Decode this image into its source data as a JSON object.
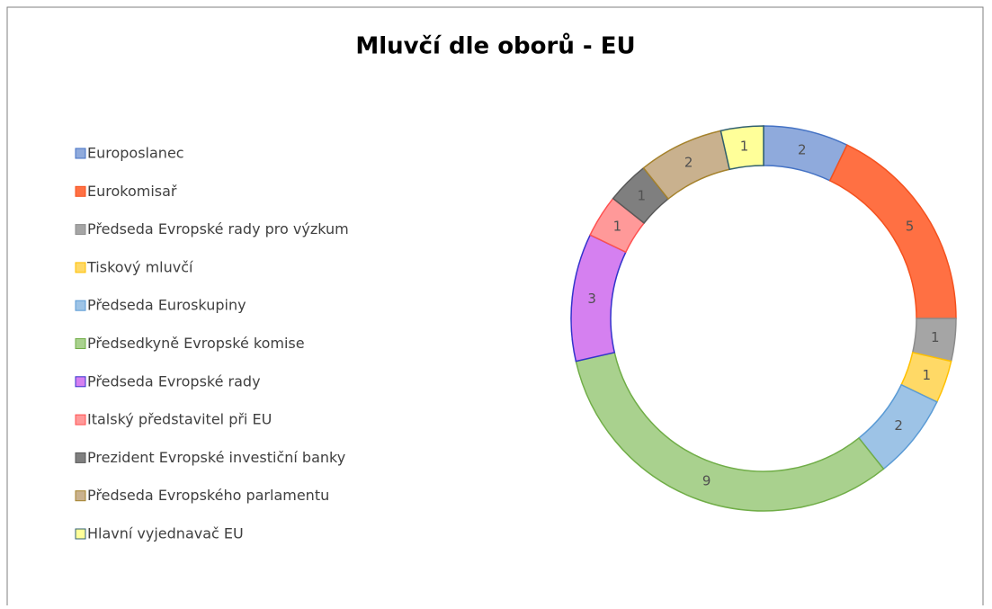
{
  "chart_data": {
    "type": "doughnut",
    "title": "Mluvčí dle oborů - EU",
    "categories": [
      "Europoslanec",
      "Eurokomisař",
      "Předseda Evropské rady pro výzkum",
      "Tiskový mluvčí",
      "Předseda Euroskupiny",
      "Předsedkyně Evropské komise",
      "Předseda Evropské rady",
      "Italský představitel při EU",
      "Prezident Evropské investiční banky",
      "Předseda Evropského parlamentu",
      "Hlavní vyjednavač EU"
    ],
    "values": [
      2,
      5,
      1,
      1,
      2,
      9,
      3,
      1,
      1,
      2,
      1
    ],
    "colors": [
      "#8faadc",
      "#ff7043",
      "#a5a5a5",
      "#ffd966",
      "#9dc3e6",
      "#a9d18e",
      "#d580f0",
      "#ff9999",
      "#7f7f7f",
      "#c9b18e",
      "#ffff99"
    ],
    "edge_colors": [
      "#4472c4",
      "#f4511e",
      "#8c8c8c",
      "#ffc000",
      "#5b9bd5",
      "#70ad47",
      "#3333cc",
      "#ff5050",
      "#595959",
      "#a5822c",
      "#2f5f6f"
    ],
    "legend": "left"
  }
}
